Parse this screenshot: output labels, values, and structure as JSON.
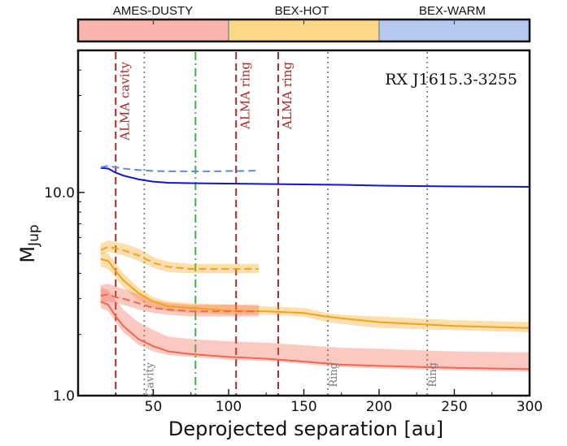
{
  "chart_data": {
    "type": "line",
    "title": "RX J1615.3-3255",
    "xlabel": "Deprojected separation [au]",
    "ylabel_main": "M",
    "ylabel_sub": "Jup",
    "xlim": [
      0,
      300
    ],
    "ylim": [
      1.0,
      50
    ],
    "yscale": "log",
    "x_ticks": [
      50,
      100,
      150,
      200,
      250,
      300
    ],
    "x_tick_labels": [
      "50",
      "100",
      "150",
      "200",
      "250",
      "300"
    ],
    "y_ticks": [
      1.0,
      10.0
    ],
    "y_tick_labels": [
      "1.0",
      "10.0"
    ],
    "model_bands": [
      {
        "name": "AMES-DUSTY",
        "x_from": 0,
        "x_to": 100,
        "color": "#fbb3ad"
      },
      {
        "name": "BEX-HOT",
        "x_from": 100,
        "x_to": 200,
        "color": "#fdd889"
      },
      {
        "name": "BEX-WARM",
        "x_from": 200,
        "x_to": 300,
        "color": "#b5c8ef"
      }
    ],
    "vertical_lines": [
      {
        "x": 25,
        "style": "dashed",
        "color": "#a52a2a",
        "label": "ALMA cavity"
      },
      {
        "x": 105,
        "style": "dashed",
        "color": "#a52a2a",
        "label": "ALMA ring"
      },
      {
        "x": 133,
        "style": "dashed",
        "color": "#a52a2a",
        "label": "ALMA ring"
      },
      {
        "x": 44,
        "style": "dotted",
        "color": "#808080",
        "label": "Cavity"
      },
      {
        "x": 166,
        "style": "dotted",
        "color": "#808080",
        "label": "Ring"
      },
      {
        "x": 232,
        "style": "dotted",
        "color": "#808080",
        "label": "Ring"
      },
      {
        "x": 78,
        "style": "dashdot",
        "color": "#3cb34a",
        "label": ""
      }
    ],
    "series": [
      {
        "model": "BEX-WARM",
        "style": "solid",
        "color": "#1414cc",
        "x": [
          15,
          20,
          25,
          30,
          40,
          50,
          60,
          75,
          100,
          125,
          150,
          175,
          200,
          250,
          300
        ],
        "y": [
          13.2,
          13.1,
          12.5,
          12.1,
          11.6,
          11.3,
          11.15,
          11.1,
          11.05,
          11.0,
          10.95,
          10.9,
          10.8,
          10.7,
          10.65
        ]
      },
      {
        "model": "BEX-WARM",
        "style": "dashed",
        "color": "#5f8ae0",
        "x": [
          15,
          20,
          25,
          30,
          40,
          50,
          60,
          75,
          90,
          100,
          110,
          120
        ],
        "y": [
          13.3,
          13.5,
          13.3,
          13.1,
          12.9,
          12.75,
          12.7,
          12.7,
          12.7,
          12.75,
          12.75,
          12.8
        ]
      },
      {
        "model": "BEX-HOT",
        "style": "solid",
        "color": "#f5a316",
        "x": [
          15,
          20,
          25,
          30,
          40,
          50,
          60,
          75,
          100,
          125,
          150,
          165,
          175,
          200,
          250,
          300
        ],
        "y": [
          4.7,
          4.6,
          4.1,
          3.7,
          3.2,
          2.9,
          2.75,
          2.7,
          2.62,
          2.6,
          2.55,
          2.45,
          2.4,
          2.3,
          2.2,
          2.15
        ],
        "band_low": [
          4.3,
          4.2,
          3.8,
          3.4,
          2.95,
          2.7,
          2.6,
          2.55,
          2.5,
          2.5,
          2.45,
          2.3,
          2.25,
          2.15,
          2.1,
          2.05
        ],
        "band_high": [
          5.1,
          5.0,
          4.5,
          4.0,
          3.4,
          3.05,
          2.9,
          2.85,
          2.8,
          2.75,
          2.7,
          2.55,
          2.5,
          2.45,
          2.35,
          2.3
        ]
      },
      {
        "model": "BEX-HOT",
        "style": "dashed",
        "color": "#f5a316",
        "x": [
          15,
          20,
          25,
          30,
          40,
          50,
          60,
          75,
          90,
          100,
          110,
          120
        ],
        "y": [
          5.2,
          5.4,
          5.3,
          5.2,
          4.9,
          4.5,
          4.3,
          4.2,
          4.2,
          4.2,
          4.2,
          4.2
        ],
        "band_low": [
          4.9,
          5.1,
          5.0,
          4.9,
          4.6,
          4.25,
          4.05,
          4.0,
          4.0,
          4.0,
          4.0,
          4.0
        ],
        "band_high": [
          5.6,
          5.8,
          5.7,
          5.6,
          5.3,
          4.8,
          4.55,
          4.45,
          4.45,
          4.45,
          4.45,
          4.45
        ]
      },
      {
        "model": "AMES-DUSTY",
        "style": "solid",
        "color": "#f2674f",
        "x": [
          15,
          20,
          25,
          30,
          40,
          50,
          60,
          75,
          100,
          125,
          150,
          175,
          200,
          250,
          300
        ],
        "y": [
          2.9,
          2.8,
          2.45,
          2.2,
          1.9,
          1.75,
          1.65,
          1.6,
          1.55,
          1.52,
          1.47,
          1.42,
          1.4,
          1.37,
          1.35
        ],
        "band_low": [
          2.7,
          2.6,
          2.3,
          2.05,
          1.78,
          1.65,
          1.58,
          1.55,
          1.5,
          1.48,
          1.43,
          1.38,
          1.36,
          1.33,
          1.31
        ],
        "band_high": [
          3.4,
          3.3,
          2.95,
          2.65,
          2.3,
          2.1,
          1.95,
          1.9,
          1.85,
          1.82,
          1.77,
          1.72,
          1.7,
          1.65,
          1.63
        ]
      },
      {
        "model": "AMES-DUSTY",
        "style": "dashed",
        "color": "#f2674f",
        "x": [
          15,
          20,
          25,
          30,
          40,
          50,
          60,
          75,
          90,
          100,
          110,
          120
        ],
        "y": [
          3.1,
          3.15,
          3.05,
          3.0,
          2.85,
          2.7,
          2.65,
          2.6,
          2.6,
          2.6,
          2.6,
          2.6
        ],
        "band_low": [
          2.85,
          2.9,
          2.85,
          2.8,
          2.65,
          2.55,
          2.5,
          2.45,
          2.45,
          2.45,
          2.45,
          2.45
        ],
        "band_high": [
          3.5,
          3.55,
          3.45,
          3.35,
          3.15,
          2.95,
          2.85,
          2.8,
          2.8,
          2.8,
          2.8,
          2.8
        ]
      }
    ],
    "grid": false
  }
}
